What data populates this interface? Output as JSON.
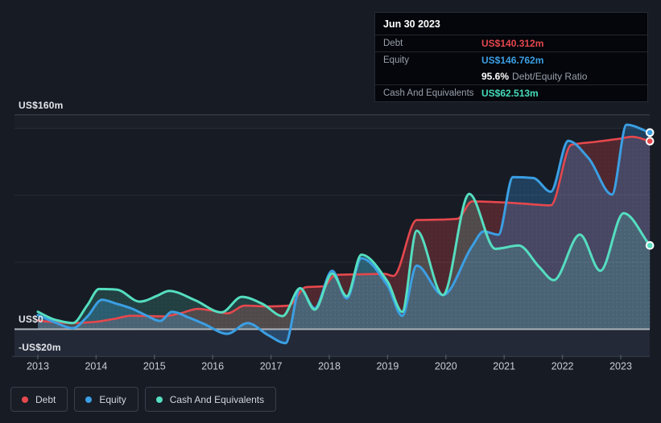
{
  "colors": {
    "background": "#161b24",
    "debt": "#e5484d",
    "equity": "#3b9fe3",
    "cash": "#55dec0",
    "grid_faint": "#272d38",
    "grid_bright": "#3d434e",
    "zero_line": "#aeb3bb",
    "axis_text": "#c9ced6",
    "below_zero_band": "#232937"
  },
  "tooltip": {
    "date": "Jun 30 2023",
    "debt_label": "Debt",
    "debt_value": "US$140.312m",
    "equity_label": "Equity",
    "equity_value": "US$146.762m",
    "ratio_value": "95.6%",
    "ratio_label": "Debt/Equity Ratio",
    "cash_label": "Cash And Equivalents",
    "cash_value": "US$62.513m"
  },
  "legend": {
    "items": [
      {
        "label": "Debt",
        "color": "#e5484d"
      },
      {
        "label": "Equity",
        "color": "#3b9fe3"
      },
      {
        "label": "Cash And Equivalents",
        "color": "#55dec0"
      }
    ]
  },
  "chart_data": {
    "type": "area",
    "values_unit": "US$ millions",
    "x_axis": {
      "years": [
        2013,
        2014,
        2015,
        2016,
        2017,
        2018,
        2019,
        2020,
        2021,
        2022,
        2023
      ]
    },
    "y_axis": {
      "labels": [
        "US$160m",
        "US$0",
        "-US$20m"
      ],
      "top_label_value": 160,
      "gridline_values": [
        150,
        100,
        50
      ],
      "zero_value": 0,
      "min_value": -20,
      "range": [
        -20,
        160
      ]
    },
    "series": [
      {
        "name": "Debt",
        "color": "#e5484d",
        "fill": "rgba(229,72,77,0.28)",
        "end_value": 140.312,
        "points": [
          [
            2013.0,
            6.5
          ],
          [
            2013.3,
            5.2
          ],
          [
            2013.6,
            4.6
          ],
          [
            2014.0,
            5.6
          ],
          [
            2014.3,
            7.6
          ],
          [
            2014.6,
            10.0
          ],
          [
            2014.9,
            9.8
          ],
          [
            2015.15,
            9.6
          ],
          [
            2015.45,
            12.0
          ],
          [
            2015.75,
            15.2
          ],
          [
            2016.05,
            13.4
          ],
          [
            2016.25,
            11.8
          ],
          [
            2016.55,
            17.6
          ],
          [
            2016.95,
            17.0
          ],
          [
            2017.3,
            17.6
          ],
          [
            2017.6,
            31.4
          ],
          [
            2017.9,
            32.0
          ],
          [
            2018.1,
            40.5
          ],
          [
            2018.55,
            41.0
          ],
          [
            2018.95,
            41.3
          ],
          [
            2019.1,
            39.8
          ],
          [
            2019.5,
            81.5
          ],
          [
            2019.9,
            81.8
          ],
          [
            2020.2,
            82.4
          ],
          [
            2020.45,
            95.4
          ],
          [
            2020.9,
            94.8
          ],
          [
            2021.3,
            93.8
          ],
          [
            2021.8,
            92.5
          ],
          [
            2022.15,
            137.6
          ],
          [
            2022.55,
            139.8
          ],
          [
            2022.95,
            142.0
          ],
          [
            2023.2,
            143.6
          ],
          [
            2023.5,
            140.312
          ]
        ]
      },
      {
        "name": "Equity",
        "color": "#3b9fe3",
        "fill": "rgba(56,140,210,0.32)",
        "end_value": 146.762,
        "points": [
          [
            2013.0,
            10.6
          ],
          [
            2013.3,
            5.0
          ],
          [
            2013.6,
            0.8
          ],
          [
            2013.85,
            9.5
          ],
          [
            2014.1,
            22.0
          ],
          [
            2014.35,
            19.0
          ],
          [
            2014.6,
            15.6
          ],
          [
            2014.85,
            10.5
          ],
          [
            2015.1,
            6.2
          ],
          [
            2015.3,
            13.0
          ],
          [
            2015.6,
            8.5
          ],
          [
            2015.85,
            4.0
          ],
          [
            2016.25,
            -3.4
          ],
          [
            2016.6,
            4.6
          ],
          [
            2016.95,
            -4.4
          ],
          [
            2017.25,
            -10.4
          ],
          [
            2017.5,
            30.6
          ],
          [
            2017.75,
            15.6
          ],
          [
            2018.05,
            43.6
          ],
          [
            2018.3,
            23.0
          ],
          [
            2018.55,
            53.0
          ],
          [
            2019.0,
            32.5
          ],
          [
            2019.25,
            10.0
          ],
          [
            2019.5,
            47.5
          ],
          [
            2019.95,
            25.5
          ],
          [
            2020.45,
            62.0
          ],
          [
            2020.65,
            73.0
          ],
          [
            2020.9,
            70.5
          ],
          [
            2021.15,
            113.5
          ],
          [
            2021.5,
            112.8
          ],
          [
            2021.8,
            102.6
          ],
          [
            2022.1,
            140.6
          ],
          [
            2022.45,
            127.5
          ],
          [
            2022.85,
            100.5
          ],
          [
            2023.1,
            152.6
          ],
          [
            2023.5,
            146.762
          ]
        ]
      },
      {
        "name": "Cash And Equivalents",
        "color": "#55dec0",
        "fill": "rgba(86,215,190,0.20)",
        "end_value": 62.513,
        "points": [
          [
            2013.0,
            13.0
          ],
          [
            2013.3,
            7.0
          ],
          [
            2013.6,
            4.6
          ],
          [
            2013.85,
            18.0
          ],
          [
            2014.05,
            30.0
          ],
          [
            2014.35,
            29.6
          ],
          [
            2014.75,
            20.6
          ],
          [
            2015.05,
            25.0
          ],
          [
            2015.25,
            28.6
          ],
          [
            2015.7,
            21.6
          ],
          [
            2016.15,
            12.6
          ],
          [
            2016.5,
            24.2
          ],
          [
            2016.85,
            19.0
          ],
          [
            2017.2,
            9.8
          ],
          [
            2017.5,
            30.6
          ],
          [
            2017.75,
            14.6
          ],
          [
            2018.05,
            41.6
          ],
          [
            2018.3,
            24.6
          ],
          [
            2018.55,
            55.6
          ],
          [
            2019.0,
            35.6
          ],
          [
            2019.25,
            13.0
          ],
          [
            2019.5,
            73.5
          ],
          [
            2019.95,
            25.5
          ],
          [
            2020.4,
            101.0
          ],
          [
            2020.85,
            60.0
          ],
          [
            2021.25,
            62.5
          ],
          [
            2021.6,
            46.6
          ],
          [
            2021.85,
            36.6
          ],
          [
            2022.3,
            70.6
          ],
          [
            2022.65,
            43.6
          ],
          [
            2023.05,
            86.6
          ],
          [
            2023.5,
            62.513
          ]
        ]
      }
    ]
  }
}
